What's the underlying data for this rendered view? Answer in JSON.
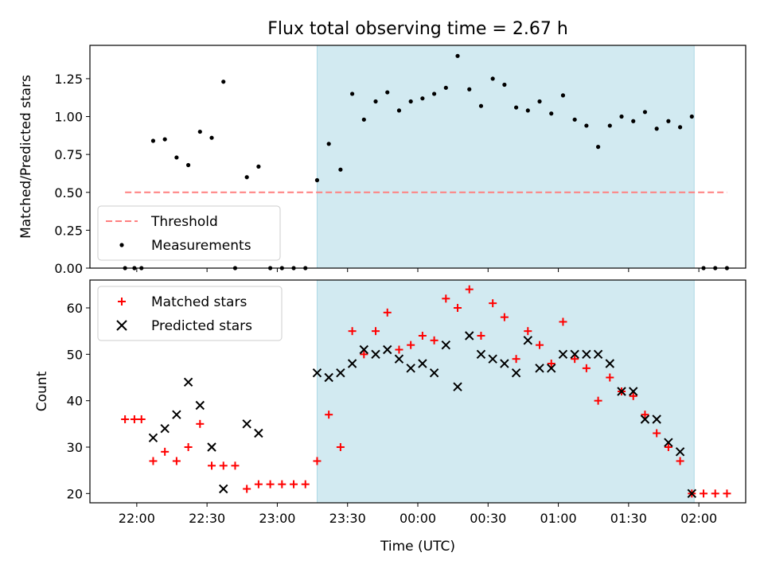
{
  "title": "Flux total observing time = 2.67 h",
  "xlabel": "Time (UTC)",
  "x_ticks": [
    "22:00",
    "22:30",
    "23:00",
    "23:30",
    "00:00",
    "00:30",
    "01:00",
    "01:30",
    "02:00"
  ],
  "colors": {
    "band": "#add8e6",
    "threshold": "#ff7f7f",
    "matched": "#ff0000",
    "predicted": "#000000",
    "measure": "#000000"
  },
  "chart_data": [
    {
      "type": "scatter",
      "ylabel": "Matched/Predicted stars",
      "ylim": [
        0,
        1.47
      ],
      "y_ticks": [
        "0.00",
        "0.25",
        "0.50",
        "0.75",
        "1.00",
        "1.25"
      ],
      "legend": [
        "Threshold",
        "Measurements"
      ],
      "legend_position": "lower left",
      "observing_window": [
        "23:17",
        "01:58"
      ],
      "threshold": {
        "name": "Threshold",
        "value": 0.5,
        "x_range": [
          "21:55",
          "02:12"
        ]
      },
      "series": [
        {
          "name": "Measurements",
          "x": [
            "21:55",
            "21:59",
            "22:02",
            "22:07",
            "22:12",
            "22:17",
            "22:22",
            "22:27",
            "22:32",
            "22:37",
            "22:42",
            "22:47",
            "22:52",
            "22:57",
            "23:02",
            "23:07",
            "23:12",
            "23:17",
            "23:22",
            "23:27",
            "23:32",
            "23:37",
            "23:42",
            "23:47",
            "23:52",
            "23:57",
            "00:02",
            "00:07",
            "00:12",
            "00:17",
            "00:22",
            "00:27",
            "00:32",
            "00:37",
            "00:42",
            "00:47",
            "00:52",
            "00:57",
            "01:02",
            "01:07",
            "01:12",
            "01:17",
            "01:22",
            "01:27",
            "01:32",
            "01:37",
            "01:42",
            "01:47",
            "01:52",
            "01:57",
            "02:02",
            "02:07",
            "02:12"
          ],
          "y": [
            0,
            0,
            0,
            0.84,
            0.85,
            0.73,
            0.68,
            0.9,
            0.86,
            1.23,
            0,
            0.6,
            0.67,
            0,
            0,
            0,
            0,
            0.58,
            0.82,
            0.65,
            1.15,
            0.98,
            1.1,
            1.16,
            1.04,
            1.1,
            1.12,
            1.15,
            1.19,
            1.4,
            1.18,
            1.07,
            1.25,
            1.21,
            1.06,
            1.04,
            1.1,
            1.02,
            1.14,
            0.98,
            0.94,
            0.8,
            0.94,
            1.0,
            0.97,
            1.03,
            0.92,
            0.97,
            0.93,
            1.0,
            0,
            0,
            0
          ]
        }
      ]
    },
    {
      "type": "scatter",
      "ylabel": "Count",
      "ylim": [
        18,
        66
      ],
      "y_ticks": [
        "20",
        "30",
        "40",
        "50",
        "60"
      ],
      "legend": [
        "Matched stars",
        "Predicted stars"
      ],
      "legend_position": "upper left",
      "observing_window": [
        "23:17",
        "01:58"
      ],
      "series": [
        {
          "name": "Matched stars",
          "x": [
            "21:55",
            "21:59",
            "22:02",
            "22:07",
            "22:12",
            "22:17",
            "22:22",
            "22:27",
            "22:32",
            "22:37",
            "22:42",
            "22:47",
            "22:52",
            "22:57",
            "23:02",
            "23:07",
            "23:12",
            "23:17",
            "23:22",
            "23:27",
            "23:32",
            "23:37",
            "23:42",
            "23:47",
            "23:52",
            "23:57",
            "00:02",
            "00:07",
            "00:12",
            "00:17",
            "00:22",
            "00:27",
            "00:32",
            "00:37",
            "00:42",
            "00:47",
            "00:52",
            "00:57",
            "01:02",
            "01:07",
            "01:12",
            "01:17",
            "01:22",
            "01:27",
            "01:32",
            "01:37",
            "01:42",
            "01:47",
            "01:52",
            "01:57",
            "02:02",
            "02:07",
            "02:12"
          ],
          "y": [
            36,
            36,
            36,
            27,
            29,
            27,
            30,
            35,
            26,
            26,
            26,
            21,
            22,
            22,
            22,
            22,
            22,
            27,
            37,
            30,
            55,
            50,
            55,
            59,
            51,
            52,
            54,
            53,
            62,
            60,
            64,
            54,
            61,
            58,
            49,
            55,
            52,
            48,
            57,
            49,
            47,
            40,
            45,
            42,
            41,
            37,
            33,
            30,
            27,
            20,
            20,
            20,
            20
          ]
        },
        {
          "name": "Predicted stars",
          "x": [
            "22:07",
            "22:12",
            "22:17",
            "22:22",
            "22:27",
            "22:32",
            "22:37",
            "22:47",
            "22:52",
            "23:17",
            "23:22",
            "23:27",
            "23:32",
            "23:37",
            "23:42",
            "23:47",
            "23:52",
            "23:57",
            "00:02",
            "00:07",
            "00:12",
            "00:17",
            "00:22",
            "00:27",
            "00:32",
            "00:37",
            "00:42",
            "00:47",
            "00:52",
            "00:57",
            "01:02",
            "01:07",
            "01:12",
            "01:17",
            "01:22",
            "01:27",
            "01:32",
            "01:37",
            "01:42",
            "01:47",
            "01:52",
            "01:57"
          ],
          "y": [
            32,
            34,
            37,
            44,
            39,
            30,
            21,
            35,
            33,
            46,
            45,
            46,
            48,
            51,
            50,
            51,
            49,
            47,
            48,
            46,
            52,
            43,
            54,
            50,
            49,
            48,
            46,
            53,
            47,
            47,
            50,
            50,
            50,
            50,
            48,
            42,
            42,
            36,
            36,
            31,
            29,
            20
          ]
        }
      ]
    }
  ]
}
